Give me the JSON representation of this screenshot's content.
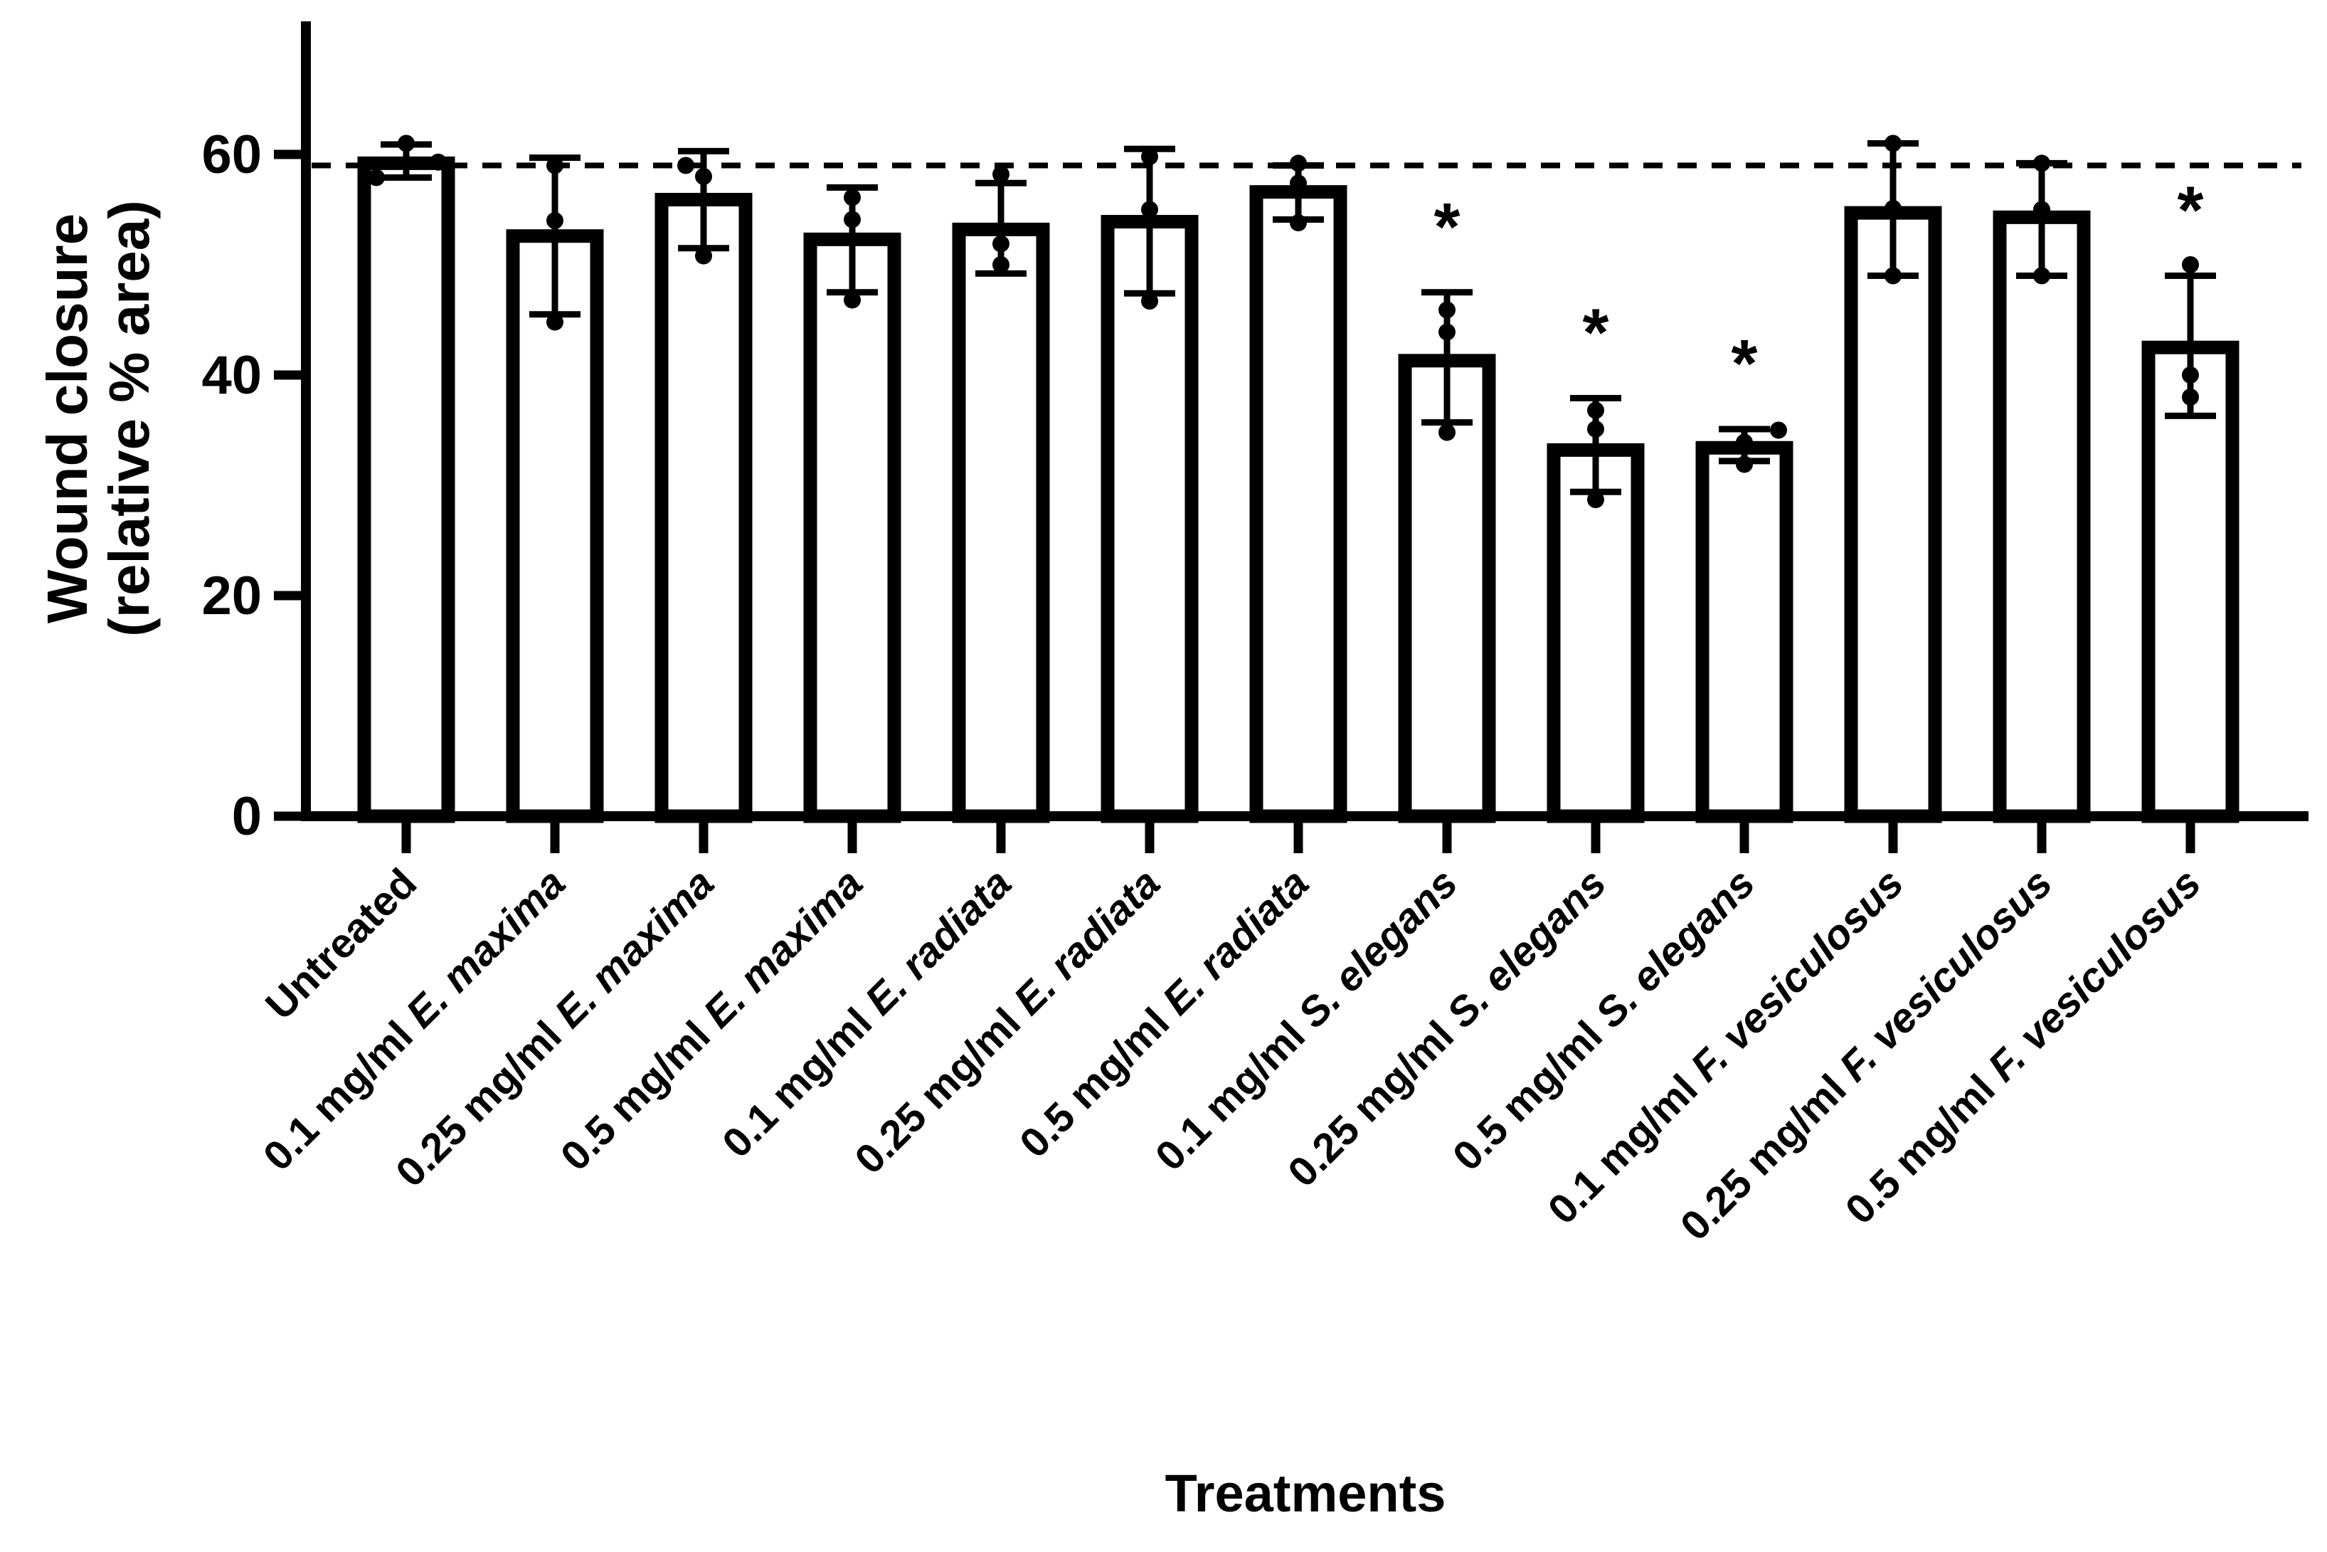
{
  "figure": {
    "background_color": "#ffffff",
    "ink_color": "#000000"
  },
  "chart_data": {
    "type": "bar",
    "title": "",
    "xlabel": "Treatments",
    "ylabel_line1": "Wound closure",
    "ylabel_line2": "(relative % area)",
    "ylim": [
      0,
      72
    ],
    "yticks": [
      0,
      20,
      40,
      60
    ],
    "grid": false,
    "legend": "none",
    "bar_fill": "#ffffff",
    "bar_stroke": "#000000",
    "reference_line": {
      "value": 59,
      "style": "dashed",
      "meaning": "untreated control level"
    },
    "significance_marker": "*",
    "categories": [
      {
        "prefix": "Untreated",
        "species": ""
      },
      {
        "prefix": "0.1 mg/ml",
        "species": "E. maxima"
      },
      {
        "prefix": "0.25 mg/ml",
        "species": "E. maxima"
      },
      {
        "prefix": "0.5 mg/ml",
        "species": "E. maxima"
      },
      {
        "prefix": "0.1 mg/ml",
        "species": "E. radiata"
      },
      {
        "prefix": "0.25 mg/ml",
        "species": "E. radiata"
      },
      {
        "prefix": "0.5 mg/ml",
        "species": "E. radiata"
      },
      {
        "prefix": "0.1 mg/ml",
        "species": "S. elegans"
      },
      {
        "prefix": "0.25 mg/ml",
        "species": "S. elegans"
      },
      {
        "prefix": "0.5 mg/ml",
        "species": "S. elegans"
      },
      {
        "prefix": "0.1 mg/ml",
        "species": "F. vesiculosus"
      },
      {
        "prefix": "0.25 mg/ml",
        "species": "F. vesiculosus"
      },
      {
        "prefix": "0.5 mg/ml",
        "species": "F. vesiculosus"
      }
    ],
    "series": [
      {
        "name": "Wound closure (relative % area)",
        "values": [
          59.2,
          52.6,
          55.9,
          52.3,
          53.2,
          53.9,
          56.6,
          41.3,
          33.2,
          33.4,
          54.7,
          54.3,
          42.5
        ]
      }
    ],
    "error_bars": {
      "upper": [
        60.9,
        59.7,
        60.3,
        57.0,
        57.4,
        60.5,
        59.0,
        47.5,
        37.9,
        35.1,
        61.0,
        59.2,
        49.0
      ],
      "lower": [
        57.9,
        45.5,
        51.5,
        47.5,
        49.2,
        47.4,
        54.1,
        35.7,
        29.4,
        32.2,
        49.0,
        49.0,
        36.3
      ]
    },
    "data_points": [
      [
        [
          61.0,
          0
        ],
        [
          59.3,
          45
        ],
        [
          57.9,
          -42
        ]
      ],
      [
        [
          59.0,
          0
        ],
        [
          54.0,
          0
        ],
        [
          44.8,
          0
        ]
      ],
      [
        [
          59.0,
          -25
        ],
        [
          58.0,
          0
        ],
        [
          50.8,
          0
        ]
      ],
      [
        [
          56.1,
          0
        ],
        [
          54.1,
          0
        ],
        [
          46.8,
          0
        ]
      ],
      [
        [
          58.2,
          0
        ],
        [
          51.9,
          0
        ],
        [
          50.0,
          0
        ]
      ],
      [
        [
          59.8,
          0
        ],
        [
          55.0,
          0
        ],
        [
          46.7,
          0
        ]
      ],
      [
        [
          59.2,
          0
        ],
        [
          57.4,
          0
        ],
        [
          53.8,
          0
        ]
      ],
      [
        [
          45.9,
          0
        ],
        [
          43.9,
          0
        ],
        [
          34.8,
          0
        ]
      ],
      [
        [
          36.8,
          0
        ],
        [
          35.1,
          0
        ],
        [
          28.7,
          0
        ]
      ],
      [
        [
          35.0,
          48
        ],
        [
          33.9,
          0
        ],
        [
          31.9,
          0
        ]
      ],
      [
        [
          61.0,
          0
        ],
        [
          55.1,
          0
        ],
        [
          49.0,
          0
        ]
      ],
      [
        [
          59.2,
          0
        ],
        [
          55.0,
          0
        ],
        [
          49.0,
          0
        ]
      ],
      [
        [
          50.0,
          0
        ],
        [
          40.0,
          0
        ],
        [
          38.0,
          0
        ]
      ]
    ],
    "significant": [
      false,
      false,
      false,
      false,
      false,
      false,
      false,
      true,
      true,
      true,
      false,
      false,
      true
    ]
  }
}
